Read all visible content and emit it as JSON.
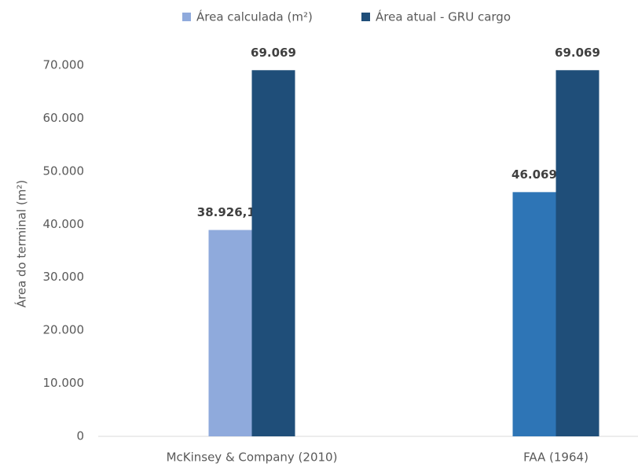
{
  "chart_data": {
    "type": "bar",
    "y_label": "Área do terminal (m²)",
    "categories": [
      "McKinsey & Company (2010)",
      "FAA (1964)"
    ],
    "series": [
      {
        "name": "Área calculada (m²)",
        "color": "#8faadc",
        "point_colors": [
          "#8faadc",
          "#2e75b6"
        ],
        "values": [
          38926.15,
          46069
        ],
        "value_labels": [
          "38.926,15",
          "46.069"
        ]
      },
      {
        "name": "Área atual - GRU cargo",
        "color": "#1f4e79",
        "values": [
          69069,
          69069
        ],
        "value_labels": [
          "69.069",
          "69.069"
        ]
      }
    ],
    "ylim": [
      0,
      70000
    ],
    "yticks": [
      0,
      {
        "value": 10000,
        "label": "10.000"
      },
      {
        "value": 20000,
        "label": "20.000"
      },
      {
        "value": 30000,
        "label": "30.000"
      },
      {
        "value": 40000,
        "label": "40.000"
      },
      {
        "value": 50000,
        "label": "50.000"
      },
      {
        "value": 60000,
        "label": "60.000"
      },
      {
        "value": 70000,
        "label": "70.000"
      }
    ],
    "grid": false,
    "legend": "top"
  }
}
